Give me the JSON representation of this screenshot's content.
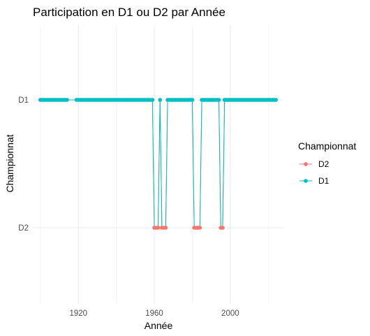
{
  "chart_data": {
    "type": "line",
    "title": "Participation en D1 ou D2 par Année",
    "xlabel": "Année",
    "ylabel": "Championnat",
    "xlim": [
      1896,
      2028
    ],
    "x_ticks": [
      1920,
      1960,
      2000
    ],
    "y_categories": [
      "D2",
      "D1"
    ],
    "grid": true,
    "legend": {
      "title": "Championnat",
      "position": "right",
      "entries": [
        "D2",
        "D1"
      ]
    },
    "colors": {
      "D1": "#00BFC4",
      "D2": "#F8766D",
      "grid": "#EBEBEB"
    },
    "markers": "points",
    "years_d1": [
      1900,
      1901,
      1902,
      1903,
      1904,
      1905,
      1906,
      1907,
      1908,
      1909,
      1910,
      1911,
      1912,
      1913,
      1914,
      1919,
      1920,
      1921,
      1922,
      1923,
      1924,
      1925,
      1926,
      1927,
      1928,
      1929,
      1930,
      1931,
      1932,
      1933,
      1934,
      1935,
      1936,
      1937,
      1938,
      1939,
      1940,
      1941,
      1942,
      1943,
      1944,
      1945,
      1946,
      1947,
      1948,
      1949,
      1950,
      1951,
      1952,
      1953,
      1954,
      1955,
      1956,
      1957,
      1958,
      1959,
      1963,
      1967,
      1968,
      1969,
      1970,
      1971,
      1972,
      1973,
      1974,
      1975,
      1976,
      1977,
      1978,
      1979,
      1980,
      1985,
      1986,
      1987,
      1988,
      1989,
      1990,
      1991,
      1992,
      1993,
      1994,
      1997,
      1998,
      1999,
      2000,
      2001,
      2002,
      2003,
      2004,
      2005,
      2006,
      2007,
      2008,
      2009,
      2010,
      2011,
      2012,
      2013,
      2014,
      2015,
      2016,
      2017,
      2018,
      2019,
      2020,
      2021,
      2022,
      2023,
      2024
    ],
    "years_d2": [
      1960,
      1961,
      1962,
      1964,
      1965,
      1966,
      1981,
      1982,
      1983,
      1984,
      1995,
      1996
    ]
  }
}
